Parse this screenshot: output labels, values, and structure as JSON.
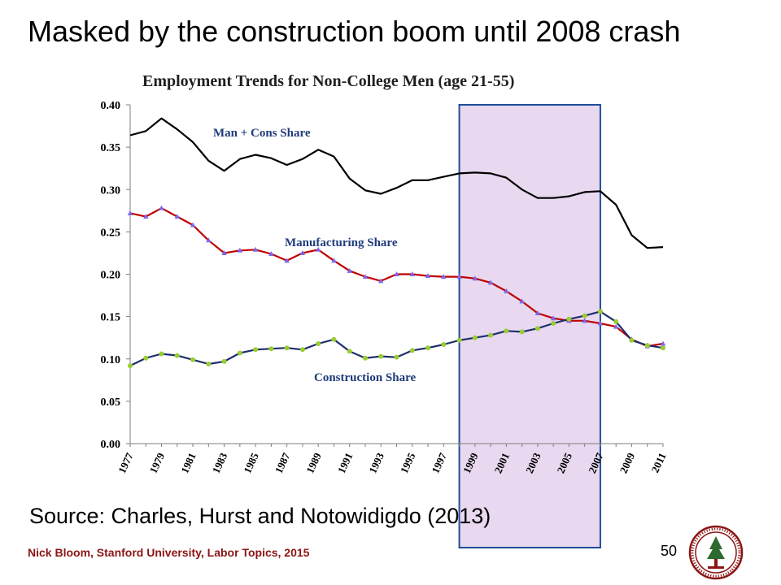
{
  "slide": {
    "title": "Masked by the construction boom until 2008 crash",
    "source": "Source: Charles, Hurst and Notowidigdo (2013)",
    "footer": "Nick Bloom, Stanford University, Labor Topics, 2015",
    "page_number": "50",
    "logo_icon": "stanford-seal-icon"
  },
  "chart_data": {
    "type": "line",
    "title": "Employment Trends for Non-College Men (age 21-55)",
    "xlabel": "",
    "ylabel": "",
    "xlim": [
      1977,
      2011
    ],
    "ylim": [
      0,
      0.4
    ],
    "grid": false,
    "y_ticks": [
      "0.00",
      "0.05",
      "0.10",
      "0.15",
      "0.20",
      "0.25",
      "0.30",
      "0.35",
      "0.40"
    ],
    "x_ticks": [
      "1977",
      "1979",
      "1981",
      "1983",
      "1985",
      "1987",
      "1989",
      "1991",
      "1993",
      "1995",
      "1997",
      "1999",
      "2001",
      "2003",
      "2005",
      "2007",
      "2009",
      "2011"
    ],
    "highlight": {
      "from": 1998,
      "to": 2007,
      "fill": "#e8d8f0",
      "stroke": "#1f4e9a"
    },
    "x": [
      1977,
      1978,
      1979,
      1980,
      1981,
      1982,
      1983,
      1984,
      1985,
      1986,
      1987,
      1988,
      1989,
      1990,
      1991,
      1992,
      1993,
      1994,
      1995,
      1996,
      1997,
      1998,
      1999,
      2000,
      2001,
      2002,
      2003,
      2004,
      2005,
      2006,
      2007,
      2008,
      2009,
      2010,
      2011
    ],
    "series": [
      {
        "name": "Man + Cons Share",
        "color": "#000000",
        "marker": "none",
        "values": [
          0.364,
          0.369,
          0.384,
          0.371,
          0.356,
          0.334,
          0.322,
          0.336,
          0.341,
          0.337,
          0.329,
          0.336,
          0.347,
          0.339,
          0.313,
          0.299,
          0.295,
          0.302,
          0.311,
          0.311,
          0.315,
          0.319,
          0.32,
          0.319,
          0.314,
          0.3,
          0.29,
          0.29,
          0.292,
          0.297,
          0.298,
          0.282,
          0.246,
          0.231,
          0.232
        ]
      },
      {
        "name": "Manufacturing Share",
        "color": "#c00000",
        "marker_color": "#7b68ee",
        "marker": "triangle",
        "values": [
          0.272,
          0.268,
          0.278,
          0.268,
          0.258,
          0.24,
          0.225,
          0.228,
          0.229,
          0.224,
          0.216,
          0.225,
          0.229,
          0.216,
          0.204,
          0.197,
          0.192,
          0.2,
          0.2,
          0.198,
          0.197,
          0.197,
          0.195,
          0.19,
          0.18,
          0.168,
          0.154,
          0.148,
          0.145,
          0.145,
          0.142,
          0.138,
          0.123,
          0.115,
          0.118
        ]
      },
      {
        "name": "Construction Share",
        "color": "#1f2e6e",
        "marker_color": "#9acd32",
        "marker": "circle",
        "values": [
          0.092,
          0.101,
          0.106,
          0.104,
          0.099,
          0.094,
          0.097,
          0.107,
          0.111,
          0.112,
          0.113,
          0.111,
          0.118,
          0.123,
          0.109,
          0.101,
          0.103,
          0.102,
          0.11,
          0.113,
          0.117,
          0.122,
          0.125,
          0.128,
          0.133,
          0.132,
          0.136,
          0.142,
          0.147,
          0.151,
          0.156,
          0.144,
          0.122,
          0.116,
          0.113
        ]
      }
    ]
  }
}
